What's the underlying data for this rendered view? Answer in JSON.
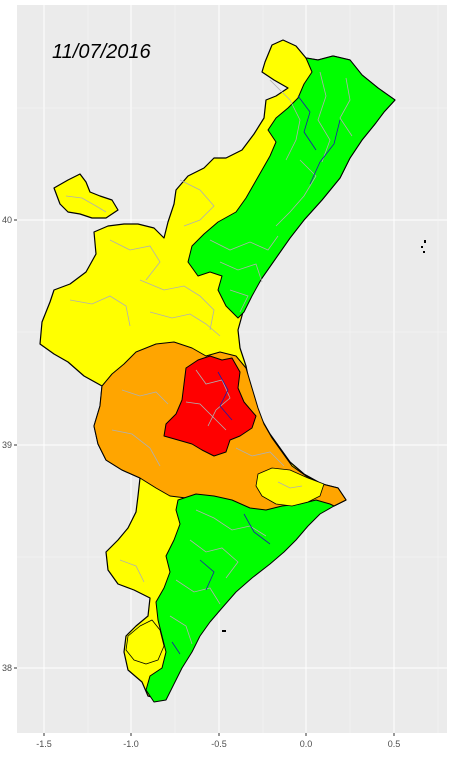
{
  "map": {
    "date_label": "11/07/2016",
    "x_ticks": [
      "-1.5",
      "-1.0",
      "-0.5",
      "0.0",
      "0.5"
    ],
    "y_ticks": [
      "38",
      "39",
      "40"
    ]
  },
  "colors": {
    "panel_background": "#ebebeb",
    "gridline": "#ffffff",
    "zone_green": "#00ff00",
    "zone_yellow": "#ffff00",
    "zone_orange": "#ffa500",
    "zone_red": "#ff0000",
    "municipality_border": "#b0b0b0",
    "district_border": "#1a1aaa",
    "outline": "#000000"
  }
}
